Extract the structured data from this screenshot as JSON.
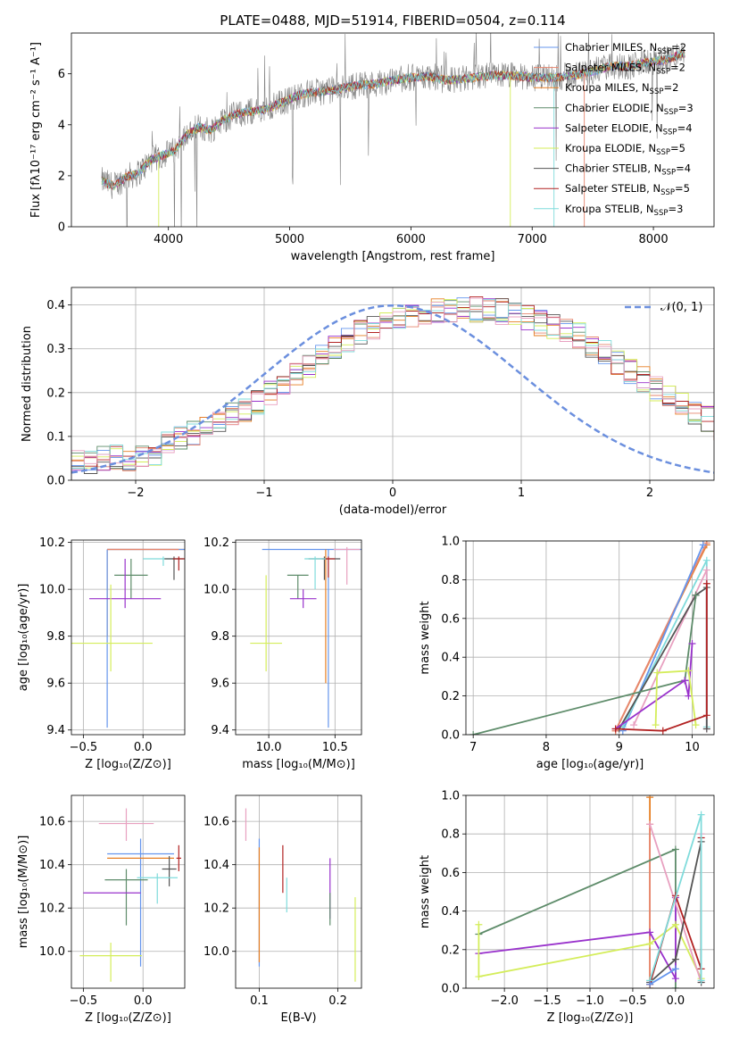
{
  "colors": {
    "chabrier_miles": "#6495ed",
    "salpeter_miles": "#e6866f",
    "kroupa_miles": "#e67e22",
    "chabrier_elodie": "#5e8c6a",
    "salpeter_elodie": "#9932cc",
    "kroupa_elodie": "#d4ed5a",
    "chabrier_stelib": "#555555",
    "salpeter_stelib": "#b22222",
    "kroupa_stelib": "#7fdbdb",
    "pink": "#e8a0c0",
    "spectrum": "#808080",
    "normal": "#6b8fde"
  },
  "chart_data": [
    {
      "id": "spectrum",
      "type": "line",
      "title": "PLATE=0488, MJD=51914, FIBERID=0504, z=0.114",
      "xlabel": "wavelength [Angstrom, rest frame]",
      "ylabel": "Flux [fλ10⁻¹⁷ erg cm⁻² s⁻¹ A⁻¹]",
      "xlim": [
        3200,
        8500
      ],
      "ylim": [
        0,
        7.6
      ],
      "xticks": [
        4000,
        5000,
        6000,
        7000,
        8000
      ],
      "yticks": [
        0,
        2,
        4,
        6
      ],
      "continuum": [
        [
          3450,
          1.8
        ],
        [
          3550,
          1.6
        ],
        [
          3650,
          1.95
        ],
        [
          3750,
          2.1
        ],
        [
          3850,
          2.6
        ],
        [
          3950,
          2.8
        ],
        [
          4050,
          3.0
        ],
        [
          4150,
          3.6
        ],
        [
          4250,
          3.9
        ],
        [
          4350,
          3.8
        ],
        [
          4450,
          4.2
        ],
        [
          4550,
          4.4
        ],
        [
          4650,
          4.5
        ],
        [
          4800,
          4.6
        ],
        [
          4950,
          4.9
        ],
        [
          5100,
          5.2
        ],
        [
          5250,
          5.3
        ],
        [
          5400,
          5.4
        ],
        [
          5550,
          5.55
        ],
        [
          5700,
          5.6
        ],
        [
          5850,
          5.75
        ],
        [
          6000,
          5.85
        ],
        [
          6150,
          5.9
        ],
        [
          6300,
          5.75
        ],
        [
          6450,
          5.8
        ],
        [
          6600,
          5.9
        ],
        [
          6750,
          5.95
        ],
        [
          6900,
          5.9
        ],
        [
          7050,
          5.85
        ],
        [
          7200,
          5.85
        ],
        [
          7350,
          5.95
        ],
        [
          7500,
          6.1
        ],
        [
          7650,
          6.3
        ],
        [
          7800,
          6.3
        ],
        [
          7950,
          6.45
        ],
        [
          8100,
          6.55
        ],
        [
          8250,
          6.8
        ]
      ],
      "legend": [
        {
          "name": "Chabrier MILES, N",
          "sub": "SSP",
          "suffix": "=2",
          "color": "chabrier_miles"
        },
        {
          "name": "Salpeter MILES, N",
          "sub": "SSP",
          "suffix": "=2",
          "color": "salpeter_miles"
        },
        {
          "name": "Kroupa MILES, N",
          "sub": "SSP",
          "suffix": "=2",
          "color": "kroupa_miles"
        },
        {
          "name": "Chabrier ELODIE, N",
          "sub": "SSP",
          "suffix": "=3",
          "color": "chabrier_elodie"
        },
        {
          "name": "Salpeter ELODIE, N",
          "sub": "SSP",
          "suffix": "=4",
          "color": "salpeter_elodie"
        },
        {
          "name": "Kroupa ELODIE, N",
          "sub": "SSP",
          "suffix": "=5",
          "color": "kroupa_elodie"
        },
        {
          "name": "Chabrier STELIB, N",
          "sub": "SSP",
          "suffix": "=4",
          "color": "chabrier_stelib"
        },
        {
          "name": "Salpeter STELIB, N",
          "sub": "SSP",
          "suffix": "=5",
          "color": "salpeter_stelib"
        },
        {
          "name": "Kroupa STELIB, N",
          "sub": "SSP",
          "suffix": "=3",
          "color": "kroupa_stelib"
        }
      ]
    },
    {
      "id": "residuals",
      "type": "histogram",
      "xlabel": "(data-model)/error",
      "ylabel": "Normed distribution",
      "xlim": [
        -2.5,
        2.5
      ],
      "ylim": [
        0,
        0.44
      ],
      "xticks": [
        -2,
        -1,
        0,
        1,
        2
      ],
      "xtick_labels": [
        "−2",
        "−1",
        "0",
        "1",
        "2"
      ],
      "yticks": [
        0.0,
        0.1,
        0.2,
        0.3,
        0.4
      ],
      "legend": "𝒩(0, 1)",
      "bin_edges_start": -2.5,
      "bin_width": 0.1,
      "base_values": [
        0.04,
        0.045,
        0.05,
        0.055,
        0.05,
        0.06,
        0.05,
        0.08,
        0.1,
        0.11,
        0.13,
        0.14,
        0.15,
        0.16,
        0.18,
        0.2,
        0.22,
        0.24,
        0.26,
        0.28,
        0.3,
        0.32,
        0.34,
        0.35,
        0.36,
        0.37,
        0.38,
        0.38,
        0.385,
        0.39,
        0.395,
        0.39,
        0.39,
        0.385,
        0.38,
        0.37,
        0.36,
        0.35,
        0.34,
        0.33,
        0.31,
        0.29,
        0.27,
        0.25,
        0.23,
        0.21,
        0.19,
        0.17,
        0.155,
        0.14,
        0.12,
        0.1,
        0.09,
        0.075,
        0.065,
        0.055,
        0.05,
        0.045,
        0.04,
        0.035
      ],
      "normal": {
        "mean": 0,
        "std": 1
      }
    },
    {
      "id": "age_vs_Z",
      "type": "errorbar",
      "xlabel": "Z [log₁₀(Z/Z⊙)]",
      "ylabel": "age  [log₁₀(age/yr)]",
      "xlim": [
        -0.6,
        0.35
      ],
      "ylim": [
        9.38,
        10.21
      ],
      "xticks": [
        -0.5,
        0.0
      ],
      "xtick_labels": [
        "−0.5",
        "0.0"
      ],
      "yticks": [
        9.4,
        9.6,
        9.8,
        10.0,
        10.2
      ],
      "points": [
        {
          "color": "kroupa_miles",
          "x": -0.3,
          "y": 10.17,
          "xerr": 0.0,
          "yerr": 0.0,
          "x1": 0.35,
          "yspan": [
            9.8,
            10.17
          ]
        },
        {
          "color": "chabrier_miles",
          "x": -0.3,
          "y": 10.17,
          "xerr": 0.0,
          "x1": 0.35,
          "yspan": [
            9.41,
            10.17
          ]
        },
        {
          "color": "salpeter_miles",
          "x": 0.0,
          "y": 10.17,
          "xerr": 0.3,
          "yspan": [
            10.17,
            10.17
          ]
        },
        {
          "color": "kroupa_stelib",
          "x": 0.17,
          "y": 10.13,
          "xerr": 0.17,
          "yspan": [
            10.1,
            10.14
          ]
        },
        {
          "color": "chabrier_stelib",
          "x": 0.26,
          "y": 10.13,
          "xerr": 0.08,
          "yspan": [
            10.04,
            10.14
          ]
        },
        {
          "color": "salpeter_stelib",
          "x": 0.3,
          "y": 10.13,
          "xerr": 0.05,
          "yspan": [
            10.08,
            10.14
          ]
        },
        {
          "color": "chabrier_elodie",
          "x": -0.1,
          "y": 10.06,
          "xerr": 0.14,
          "yspan": [
            9.96,
            10.13
          ]
        },
        {
          "color": "salpeter_elodie",
          "x": -0.15,
          "y": 9.96,
          "xerr": 0.3,
          "yspan": [
            9.92,
            10.13
          ]
        },
        {
          "color": "kroupa_elodie",
          "x": -0.27,
          "y": 9.77,
          "xerr": 0.35,
          "yspan": [
            9.65,
            10.02
          ]
        }
      ]
    },
    {
      "id": "age_vs_mass",
      "type": "errorbar",
      "xlabel": "mass [log₁₀(M/M⊙)]",
      "ylabel": "",
      "xlim": [
        9.75,
        10.7
      ],
      "ylim": [
        9.38,
        10.21
      ],
      "xticks": [
        10.0,
        10.5
      ],
      "xtick_labels": [
        "10.0",
        "10.5"
      ],
      "yticks": [
        9.4,
        9.6,
        9.8,
        10.0,
        10.2
      ],
      "points": [
        {
          "color": "chabrier_miles",
          "x": 10.45,
          "y": 10.17,
          "xerr": 0.5,
          "yspan": [
            9.41,
            10.17
          ]
        },
        {
          "color": "kroupa_miles",
          "x": 10.43,
          "y": 10.17,
          "xerr": 0.0,
          "yspan": [
            9.6,
            10.17
          ]
        },
        {
          "color": "pink",
          "x": 10.59,
          "y": 10.17,
          "xerr": 0.1,
          "yspan": [
            10.02,
            10.18
          ]
        },
        {
          "color": "chabrier_elodie",
          "x": 10.22,
          "y": 10.06,
          "xerr": 0.08,
          "yspan": [
            9.96,
            10.06
          ]
        },
        {
          "color": "salpeter_elodie",
          "x": 10.26,
          "y": 9.96,
          "xerr": 0.1,
          "yspan": [
            9.92,
            10.0
          ]
        },
        {
          "color": "chabrier_stelib",
          "x": 10.42,
          "y": 10.13,
          "xerr": 0.12,
          "yspan": [
            10.04,
            10.14
          ]
        },
        {
          "color": "salpeter_stelib",
          "x": 10.45,
          "y": 10.13,
          "xerr": 0.05,
          "yspan": [
            10.05,
            10.14
          ]
        },
        {
          "color": "kroupa_stelib",
          "x": 10.35,
          "y": 10.13,
          "xerr": 0.08,
          "yspan": [
            10.0,
            10.14
          ]
        },
        {
          "color": "kroupa_elodie",
          "x": 9.98,
          "y": 9.77,
          "xerr": 0.12,
          "yspan": [
            9.65,
            10.06
          ]
        }
      ]
    },
    {
      "id": "mass_weight_vs_age",
      "type": "line",
      "xlabel": "age  [log₁₀(age/yr)]",
      "ylabel": "mass weight",
      "xlim": [
        6.9,
        10.3
      ],
      "ylim": [
        0,
        1.0
      ],
      "xticks": [
        7,
        8,
        9,
        10
      ],
      "yticks": [
        0.0,
        0.2,
        0.4,
        0.6,
        0.8,
        1.0
      ],
      "series": [
        {
          "color": "kroupa_miles",
          "x": [
            8.95,
            10.2
          ],
          "y": [
            0.02,
            0.98
          ]
        },
        {
          "color": "salpeter_miles",
          "x": [
            8.95,
            10.2
          ],
          "y": [
            0.02,
            0.99
          ]
        },
        {
          "color": "chabrier_miles",
          "x": [
            9.05,
            10.15
          ],
          "y": [
            0.02,
            0.98
          ]
        },
        {
          "color": "kroupa_stelib",
          "x": [
            9.05,
            10.2,
            10.2
          ],
          "y": [
            0.04,
            0.9,
            0.04
          ]
        },
        {
          "color": "pink",
          "x": [
            9.2,
            10.2,
            10.2
          ],
          "y": [
            0.05,
            0.85,
            0.03
          ]
        },
        {
          "color": "chabrier_stelib",
          "x": [
            9.0,
            10.05,
            10.2,
            10.2
          ],
          "y": [
            0.03,
            0.72,
            0.76,
            0.03
          ]
        },
        {
          "color": "chabrier_elodie",
          "x": [
            7.0,
            9.9,
            10.05
          ],
          "y": [
            0.0,
            0.28,
            0.72
          ]
        },
        {
          "color": "salpeter_elodie",
          "x": [
            8.95,
            9.9,
            9.95,
            10.0
          ],
          "y": [
            0.03,
            0.28,
            0.2,
            0.47
          ]
        },
        {
          "color": "kroupa_elodie",
          "x": [
            9.5,
            9.52,
            9.95,
            10.05
          ],
          "y": [
            0.05,
            0.32,
            0.33,
            0.05
          ]
        },
        {
          "color": "salpeter_stelib",
          "x": [
            8.95,
            9.6,
            10.2,
            10.2
          ],
          "y": [
            0.03,
            0.02,
            0.1,
            0.78
          ]
        }
      ]
    },
    {
      "id": "mass_vs_Z",
      "type": "errorbar",
      "xlabel": "Z [log₁₀(Z/Z⊙)]",
      "ylabel": "mass [log₁₀(M/M⊙)]",
      "xlim": [
        -0.6,
        0.35
      ],
      "ylim": [
        9.83,
        10.72
      ],
      "xticks": [
        -0.5,
        0.0
      ],
      "xtick_labels": [
        "−0.5",
        "0.0"
      ],
      "yticks": [
        10.0,
        10.2,
        10.4,
        10.6
      ],
      "points": [
        {
          "color": "pink",
          "x": -0.14,
          "y": 10.59,
          "xerr": 0.23,
          "yspan": [
            10.51,
            10.66
          ]
        },
        {
          "color": "chabrier_miles",
          "x": -0.02,
          "y": 10.45,
          "xerr": 0.28,
          "yspan": [
            9.93,
            10.52
          ]
        },
        {
          "color": "kroupa_miles",
          "x": -0.02,
          "y": 10.43,
          "xerr": 0.28,
          "yspan": [
            10.43,
            10.43
          ]
        },
        {
          "color": "salpeter_stelib",
          "x": 0.3,
          "y": 10.43,
          "xerr": 0.02,
          "yspan": [
            10.37,
            10.49
          ]
        },
        {
          "color": "chabrier_stelib",
          "x": 0.22,
          "y": 10.38,
          "xerr": 0.06,
          "yspan": [
            10.3,
            10.44
          ]
        },
        {
          "color": "kroupa_stelib",
          "x": 0.12,
          "y": 10.34,
          "xerr": 0.17,
          "yspan": [
            10.22,
            10.36
          ]
        },
        {
          "color": "chabrier_elodie",
          "x": -0.14,
          "y": 10.33,
          "xerr": 0.18,
          "yspan": [
            10.12,
            10.38
          ]
        },
        {
          "color": "salpeter_elodie",
          "x": -0.26,
          "y": 10.27,
          "xerr": 0.24,
          "yspan": [
            10.27,
            10.27
          ]
        },
        {
          "color": "kroupa_elodie",
          "x": -0.27,
          "y": 9.98,
          "xerr": 0.26,
          "yspan": [
            9.86,
            10.04
          ]
        }
      ]
    },
    {
      "id": "mass_vs_ebv",
      "type": "errorbar",
      "xlabel": "E(B-V)",
      "ylabel": "",
      "xlim": [
        0.07,
        0.23
      ],
      "ylim": [
        9.83,
        10.72
      ],
      "xticks": [
        0.1,
        0.2
      ],
      "xtick_labels": [
        "0.1",
        "0.2"
      ],
      "yticks": [
        10.0,
        10.2,
        10.4,
        10.6
      ],
      "points": [
        {
          "color": "pink",
          "x": 0.083,
          "y": 10.59,
          "xerr": 0,
          "yspan": [
            10.51,
            10.66
          ]
        },
        {
          "color": "chabrier_miles",
          "x": 0.1,
          "y": 10.45,
          "xerr": 0,
          "yspan": [
            9.93,
            10.52
          ]
        },
        {
          "color": "kroupa_miles",
          "x": 0.1,
          "y": 10.43,
          "xerr": 0,
          "yspan": [
            9.95,
            10.48
          ]
        },
        {
          "color": "salpeter_stelib",
          "x": 0.13,
          "y": 10.38,
          "xerr": 0,
          "yspan": [
            10.27,
            10.49
          ]
        },
        {
          "color": "kroupa_stelib",
          "x": 0.135,
          "y": 10.28,
          "xerr": 0,
          "yspan": [
            10.18,
            10.34
          ]
        },
        {
          "color": "salpeter_elodie",
          "x": 0.19,
          "y": 10.33,
          "xerr": 0,
          "yspan": [
            10.15,
            10.43
          ]
        },
        {
          "color": "chabrier_elodie",
          "x": 0.19,
          "y": 10.2,
          "xerr": 0,
          "yspan": [
            10.12,
            10.27
          ]
        },
        {
          "color": "kroupa_elodie",
          "x": 0.222,
          "y": 10.0,
          "xerr": 0,
          "yspan": [
            9.86,
            10.25
          ]
        }
      ]
    },
    {
      "id": "mass_weight_vs_Z",
      "type": "line",
      "xlabel": "Z [log₁₀(Z/Z⊙)]",
      "ylabel": "mass weight",
      "xlim": [
        -2.45,
        0.45
      ],
      "ylim": [
        0,
        1.0
      ],
      "xticks": [
        -2.0,
        -1.5,
        -1.0,
        -0.5,
        0.0
      ],
      "xtick_labels": [
        "−2.0",
        "−1.5",
        "−1.0",
        "−0.5",
        "0.0"
      ],
      "yticks": [
        0.0,
        0.2,
        0.4,
        0.6,
        0.8,
        1.0
      ],
      "series": [
        {
          "color": "kroupa_miles",
          "x": [
            -0.3,
            -0.3
          ],
          "y": [
            0.0,
            0.99
          ]
        },
        {
          "color": "salpeter_miles",
          "x": [
            -0.3,
            -0.3
          ],
          "y": [
            0.02,
            0.85
          ]
        },
        {
          "color": "chabrier_elodie",
          "x": [
            -2.3,
            0.0,
            0.0
          ],
          "y": [
            0.28,
            0.72,
            0.0
          ]
        },
        {
          "color": "salpeter_elodie",
          "x": [
            -2.3,
            -0.3,
            0.0,
            0.0
          ],
          "y": [
            0.18,
            0.29,
            0.05,
            0.47
          ]
        },
        {
          "color": "kroupa_elodie",
          "x": [
            -2.3,
            -2.3,
            -0.3,
            0.0,
            0.3
          ],
          "y": [
            0.33,
            0.06,
            0.23,
            0.33,
            0.05
          ]
        },
        {
          "color": "pink",
          "x": [
            -0.3,
            0.3,
            0.3
          ],
          "y": [
            0.85,
            0.03,
            0.8
          ]
        },
        {
          "color": "chabrier_stelib",
          "x": [
            -0.3,
            0.0,
            0.3,
            0.3
          ],
          "y": [
            0.03,
            0.15,
            0.76,
            0.03
          ]
        },
        {
          "color": "salpeter_stelib",
          "x": [
            -0.3,
            0.0,
            0.3,
            0.3
          ],
          "y": [
            0.02,
            0.48,
            0.1,
            0.78
          ]
        },
        {
          "color": "kroupa_stelib",
          "x": [
            -0.3,
            0.3,
            0.3
          ],
          "y": [
            0.04,
            0.9,
            0.04
          ]
        },
        {
          "color": "chabrier_miles",
          "x": [
            -0.3,
            0.0
          ],
          "y": [
            0.02,
            0.1
          ]
        }
      ]
    }
  ]
}
